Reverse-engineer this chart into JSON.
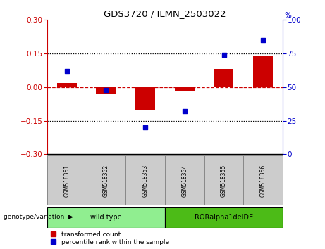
{
  "title": "GDS3720 / ILMN_2503022",
  "samples": [
    "GSM518351",
    "GSM518352",
    "GSM518353",
    "GSM518354",
    "GSM518355",
    "GSM518356"
  ],
  "transformed_count": [
    0.02,
    -0.03,
    -0.1,
    -0.02,
    0.08,
    0.14
  ],
  "percentile_rank": [
    62,
    48,
    20,
    32,
    74,
    85
  ],
  "bar_color": "#CC0000",
  "dot_color": "#0000CC",
  "ylim_left": [
    -0.3,
    0.3
  ],
  "ylim_right": [
    0,
    100
  ],
  "yticks_left": [
    -0.3,
    -0.15,
    0,
    0.15,
    0.3
  ],
  "yticks_right": [
    0,
    25,
    50,
    75,
    100
  ],
  "hline_color": "#CC0000",
  "dotted_line_y": [
    0.15,
    -0.15
  ],
  "genotype_label": "genotype/variation",
  "group_defs": [
    {
      "label": "wild type",
      "start": 0,
      "end": 2,
      "color": "#90EE90"
    },
    {
      "label": "RORalpha1delDE",
      "start": 3,
      "end": 5,
      "color": "#4CBB17"
    }
  ],
  "legend_items": [
    {
      "label": "transformed count",
      "color": "#CC0000"
    },
    {
      "label": "percentile rank within the sample",
      "color": "#0000CC"
    }
  ],
  "background_color": "#ffffff",
  "sample_box_color": "#cccccc",
  "bar_width": 0.5
}
